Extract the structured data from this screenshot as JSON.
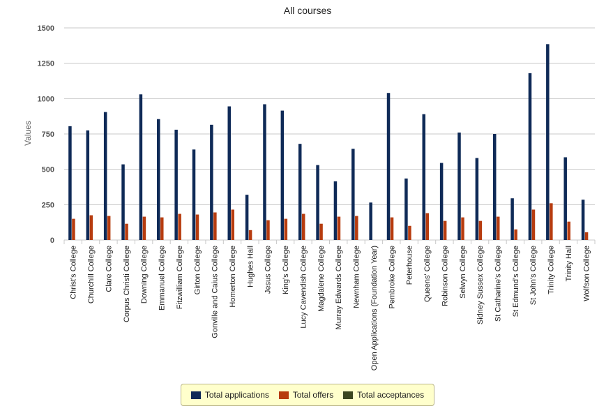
{
  "chart_data": {
    "type": "bar",
    "title": "All courses",
    "ylabel": "Values",
    "xlabel": "",
    "ylim": [
      0,
      1500
    ],
    "yticks": [
      0,
      250,
      500,
      750,
      1000,
      1250,
      1500
    ],
    "grid": true,
    "legend_position": "bottom",
    "categories": [
      "Christ's College",
      "Churchill College",
      "Clare College",
      "Corpus Christi College",
      "Downing College",
      "Emmanuel College",
      "Fitzwilliam College",
      "Girton College",
      "Gonville and Caius College",
      "Homerton College",
      "Hughes Hall",
      "Jesus College",
      "King's College",
      "Lucy Cavendish College",
      "Magdalene College",
      "Murray Edwards College",
      "Newnham College",
      "Open Applications (Foundation Year)",
      "Pembroke College",
      "Peterhouse",
      "Queens' College",
      "Robinson College",
      "Selwyn College",
      "Sidney Sussex College",
      "St Catharine's College",
      "St Edmund's College",
      "St John's College",
      "Trinity College",
      "Trinity Hall",
      "Wolfson College"
    ],
    "series": [
      {
        "name": "Total applications",
        "color": "#0f2a57",
        "values": [
          805,
          775,
          905,
          535,
          1030,
          855,
          780,
          640,
          815,
          945,
          320,
          960,
          915,
          680,
          530,
          415,
          645,
          265,
          1040,
          435,
          890,
          545,
          760,
          580,
          750,
          295,
          1180,
          1385,
          585,
          285
        ]
      },
      {
        "name": "Total offers",
        "color": "#b73c0f",
        "values": [
          150,
          175,
          170,
          115,
          165,
          160,
          185,
          180,
          195,
          215,
          70,
          140,
          150,
          185,
          115,
          165,
          170,
          0,
          160,
          100,
          190,
          135,
          160,
          135,
          165,
          75,
          215,
          260,
          130,
          55
        ]
      },
      {
        "name": "Total acceptances",
        "color": "#3b4621",
        "values": [
          0,
          0,
          0,
          0,
          0,
          0,
          0,
          0,
          0,
          0,
          0,
          0,
          0,
          0,
          0,
          0,
          0,
          0,
          0,
          0,
          0,
          0,
          0,
          0,
          0,
          0,
          0,
          0,
          0,
          0
        ]
      }
    ]
  }
}
